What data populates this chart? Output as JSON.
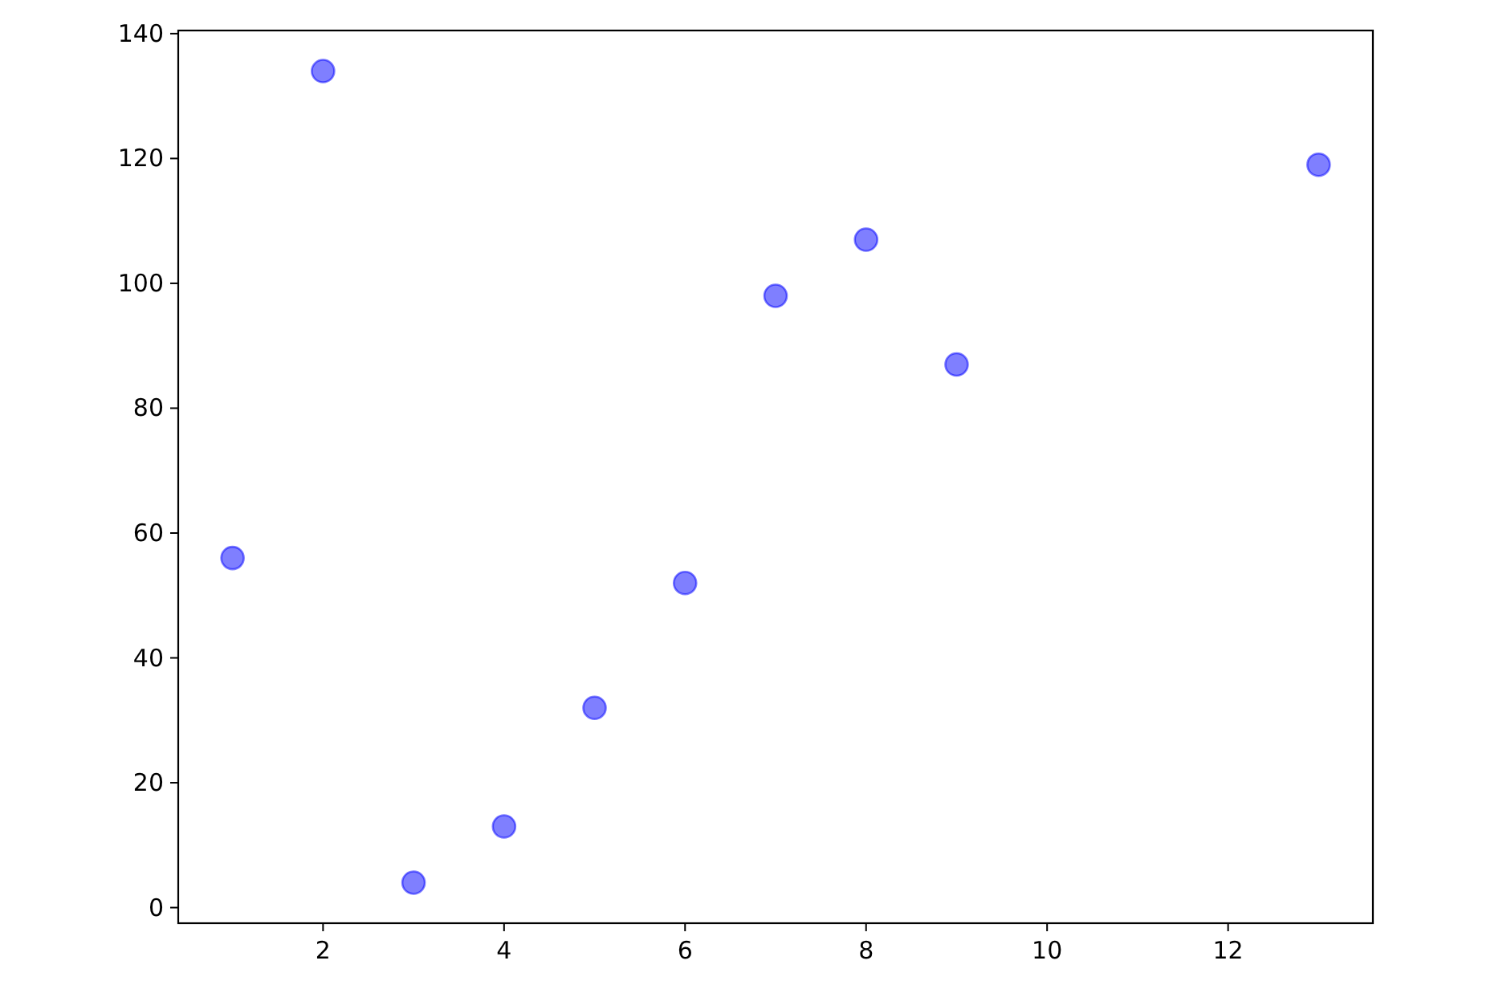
{
  "chart_data": {
    "type": "scatter",
    "x": [
      1,
      2,
      3,
      4,
      5,
      6,
      7,
      8,
      9,
      13
    ],
    "series": [
      {
        "color": "#0000ff",
        "values": [
          56,
          134,
          4,
          13,
          32,
          52,
          98,
          107,
          87,
          119
        ]
      }
    ],
    "xlim": [
      0.4,
      13.6
    ],
    "ylim": [
      -2.5,
      140.5
    ],
    "xticks": [
      2,
      4,
      6,
      8,
      10,
      12
    ],
    "yticks": [
      0,
      20,
      40,
      60,
      80,
      100,
      120,
      140
    ],
    "marker": "circle",
    "grid": false
  }
}
